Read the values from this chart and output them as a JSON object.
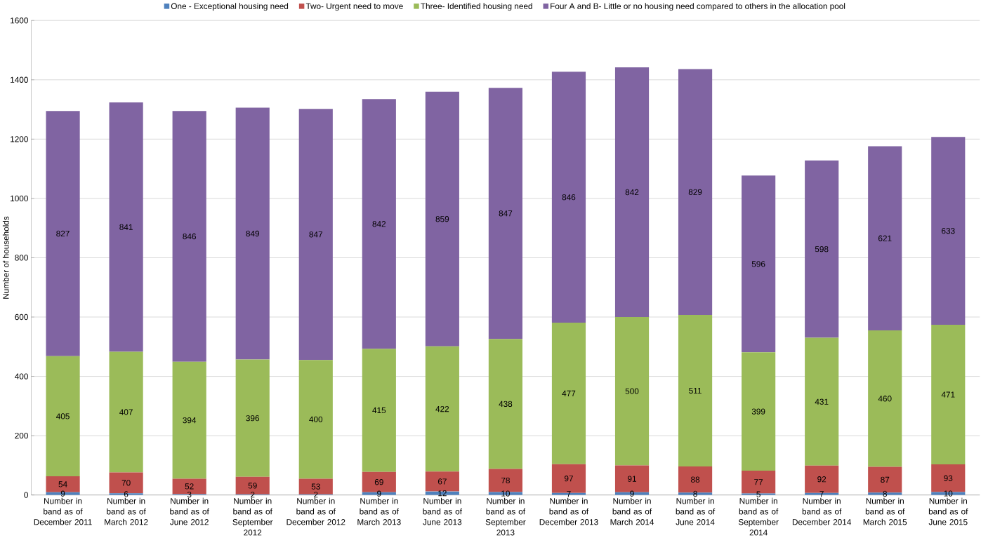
{
  "chart_data": {
    "type": "bar",
    "stacked": true,
    "ylabel": "Number of households",
    "categories": [
      "Number in band as of December 2011",
      "Number in band as of March 2012",
      "Number in band as of June 2012",
      "Number in band as of September 2012",
      "Number in band as of December 2012",
      "Number in band as of March 2013",
      "Number in band as of June 2013",
      "Number in band as of September 2013",
      "Number in band as of December 2013",
      "Number in band as of March 2014",
      "Number in band as of June 2014",
      "Number in band as of September 2014",
      "Number in band as of December 2014",
      "Number in band as of March 2015",
      "Number in band as of June 2015"
    ],
    "series": [
      {
        "name": "One - Exceptional housing need",
        "color": "#4f81bd",
        "values": [
          9,
          6,
          3,
          2,
          2,
          9,
          12,
          10,
          7,
          9,
          8,
          5,
          7,
          8,
          10
        ]
      },
      {
        "name": "Two- Urgent need to move",
        "color": "#c0504d",
        "values": [
          54,
          70,
          52,
          59,
          53,
          69,
          67,
          78,
          97,
          91,
          88,
          77,
          92,
          87,
          93
        ]
      },
      {
        "name": "Three- Identified housing need",
        "color": "#9bbb59",
        "values": [
          405,
          407,
          394,
          396,
          400,
          415,
          422,
          438,
          477,
          500,
          511,
          399,
          431,
          460,
          471
        ]
      },
      {
        "name": "Four A and B- Little or no housing need compared to others in the allocation pool",
        "color": "#8064a2",
        "values": [
          827,
          841,
          846,
          849,
          847,
          842,
          859,
          847,
          846,
          842,
          829,
          596,
          598,
          621,
          633
        ]
      }
    ],
    "ylim": [
      0,
      1600
    ],
    "yticks": [
      0,
      200,
      400,
      600,
      800,
      1000,
      1200,
      1400,
      1600
    ],
    "grid": "y",
    "legend": "top",
    "data_labels": true
  }
}
